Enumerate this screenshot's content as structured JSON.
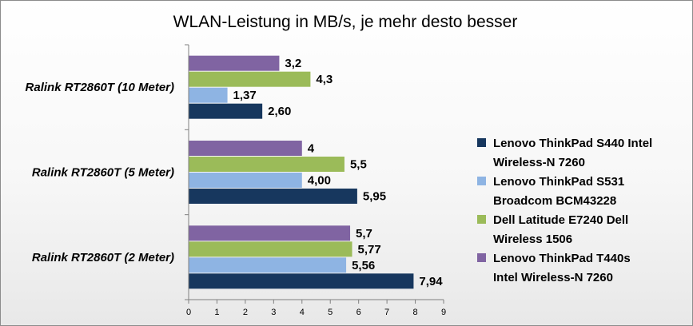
{
  "chart_data": {
    "type": "bar",
    "orientation": "horizontal",
    "title": "WLAN-Leistung in MB/s, je mehr desto besser",
    "xlabel": "",
    "ylabel": "",
    "xlim": [
      0,
      9
    ],
    "ticks": [
      0,
      1,
      2,
      3,
      4,
      5,
      6,
      7,
      8,
      9
    ],
    "grid": false,
    "legend_position": "right",
    "categories": [
      "Ralink RT2860T  (10 Meter)",
      "Ralink RT2860T  (5 Meter)",
      "Ralink RT2860T  (2 Meter)"
    ],
    "series": [
      {
        "name": "Lenovo ThinkPad  T440s Intel Wireless-N  7260",
        "legend_lines": [
          "Lenovo ThinkPad  T440s",
          "Intel Wireless-N  7260"
        ],
        "color": "#8064a2",
        "values": [
          3.2,
          4,
          5.7
        ],
        "labels": [
          "3,2",
          "4",
          "5,7"
        ]
      },
      {
        "name": "Dell Latitude  E7240 Dell Wireless 1506",
        "legend_lines": [
          "Dell Latitude  E7240 Dell",
          "Wireless 1506"
        ],
        "color": "#9bbb59",
        "values": [
          4.3,
          5.5,
          5.77
        ],
        "labels": [
          "4,3",
          "5,5",
          "5,77"
        ]
      },
      {
        "name": "Lenovo ThinkPad  S531 Broadcom BCM43228",
        "legend_lines": [
          "Lenovo ThinkPad  S531",
          "Broadcom  BCM43228"
        ],
        "color": "#8eb4e3",
        "values": [
          1.37,
          4.0,
          5.56
        ],
        "labels": [
          "1,37",
          "4,00",
          "5,56"
        ]
      },
      {
        "name": "Lenovo ThinkPad  S440 Intel Wireless-N  7260",
        "legend_lines": [
          "Lenovo ThinkPad  S440 Intel",
          "Wireless-N  7260"
        ],
        "color": "#17375e",
        "values": [
          2.6,
          5.95,
          7.94
        ],
        "labels": [
          "2,60",
          "5,95",
          "7,94"
        ]
      }
    ]
  }
}
